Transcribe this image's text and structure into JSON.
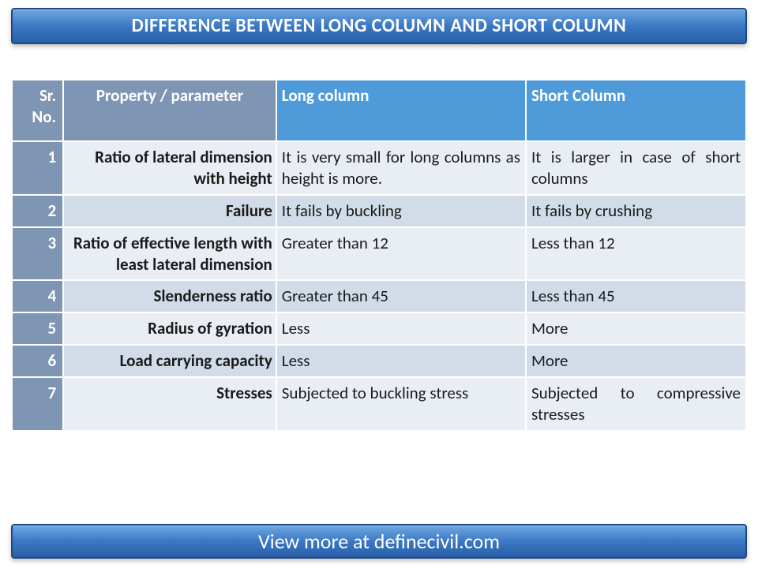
{
  "title": "DIFFERENCE BETWEEN LONG COLUMN AND SHORT COLUMN",
  "footer": "View more at definecivil.com",
  "table": {
    "columns": [
      "Sr. No.",
      "Property / parameter",
      "Long column",
      "Short Column"
    ],
    "header_colors": {
      "left_block": "#7e95b3",
      "right_block": "#4f9bd9",
      "text": "#ffffff"
    },
    "row_colors": {
      "odd": "#e9eef5",
      "even": "#d2dce9",
      "sr_bg": "#7e95b3"
    },
    "border_color": "#ffffff",
    "font_size": 21,
    "rows": [
      {
        "sr": "1",
        "property": "Ratio of lateral dimension with height",
        "long": "It is very small for long columns as height is more.",
        "short": "It is larger in case of short columns"
      },
      {
        "sr": "2",
        "property": "Failure",
        "long": "It fails by buckling",
        "short": "It fails by crushing"
      },
      {
        "sr": "3",
        "property": "Ratio of effective length with least lateral dimension",
        "long": "Greater than 12",
        "short": "Less than 12"
      },
      {
        "sr": "4",
        "property": "Slenderness ratio",
        "long": "Greater than 45",
        "short": "Less than 45"
      },
      {
        "sr": "5",
        "property": "Radius of gyration",
        "long": "Less",
        "short": "More"
      },
      {
        "sr": "6",
        "property": "Load carrying capacity",
        "long": "Less",
        "short": "More"
      },
      {
        "sr": "7",
        "property": "Stresses",
        "long": "Subjected to buckling stress",
        "short": "Subjected to compressive stresses"
      }
    ]
  },
  "banner_style": {
    "gradient_top": "#6fa8e0",
    "gradient_mid": "#3b78c4",
    "gradient_bottom": "#2a5fa8",
    "border": "#1e4a82",
    "title_fontsize": 24,
    "footer_fontsize": 26
  }
}
